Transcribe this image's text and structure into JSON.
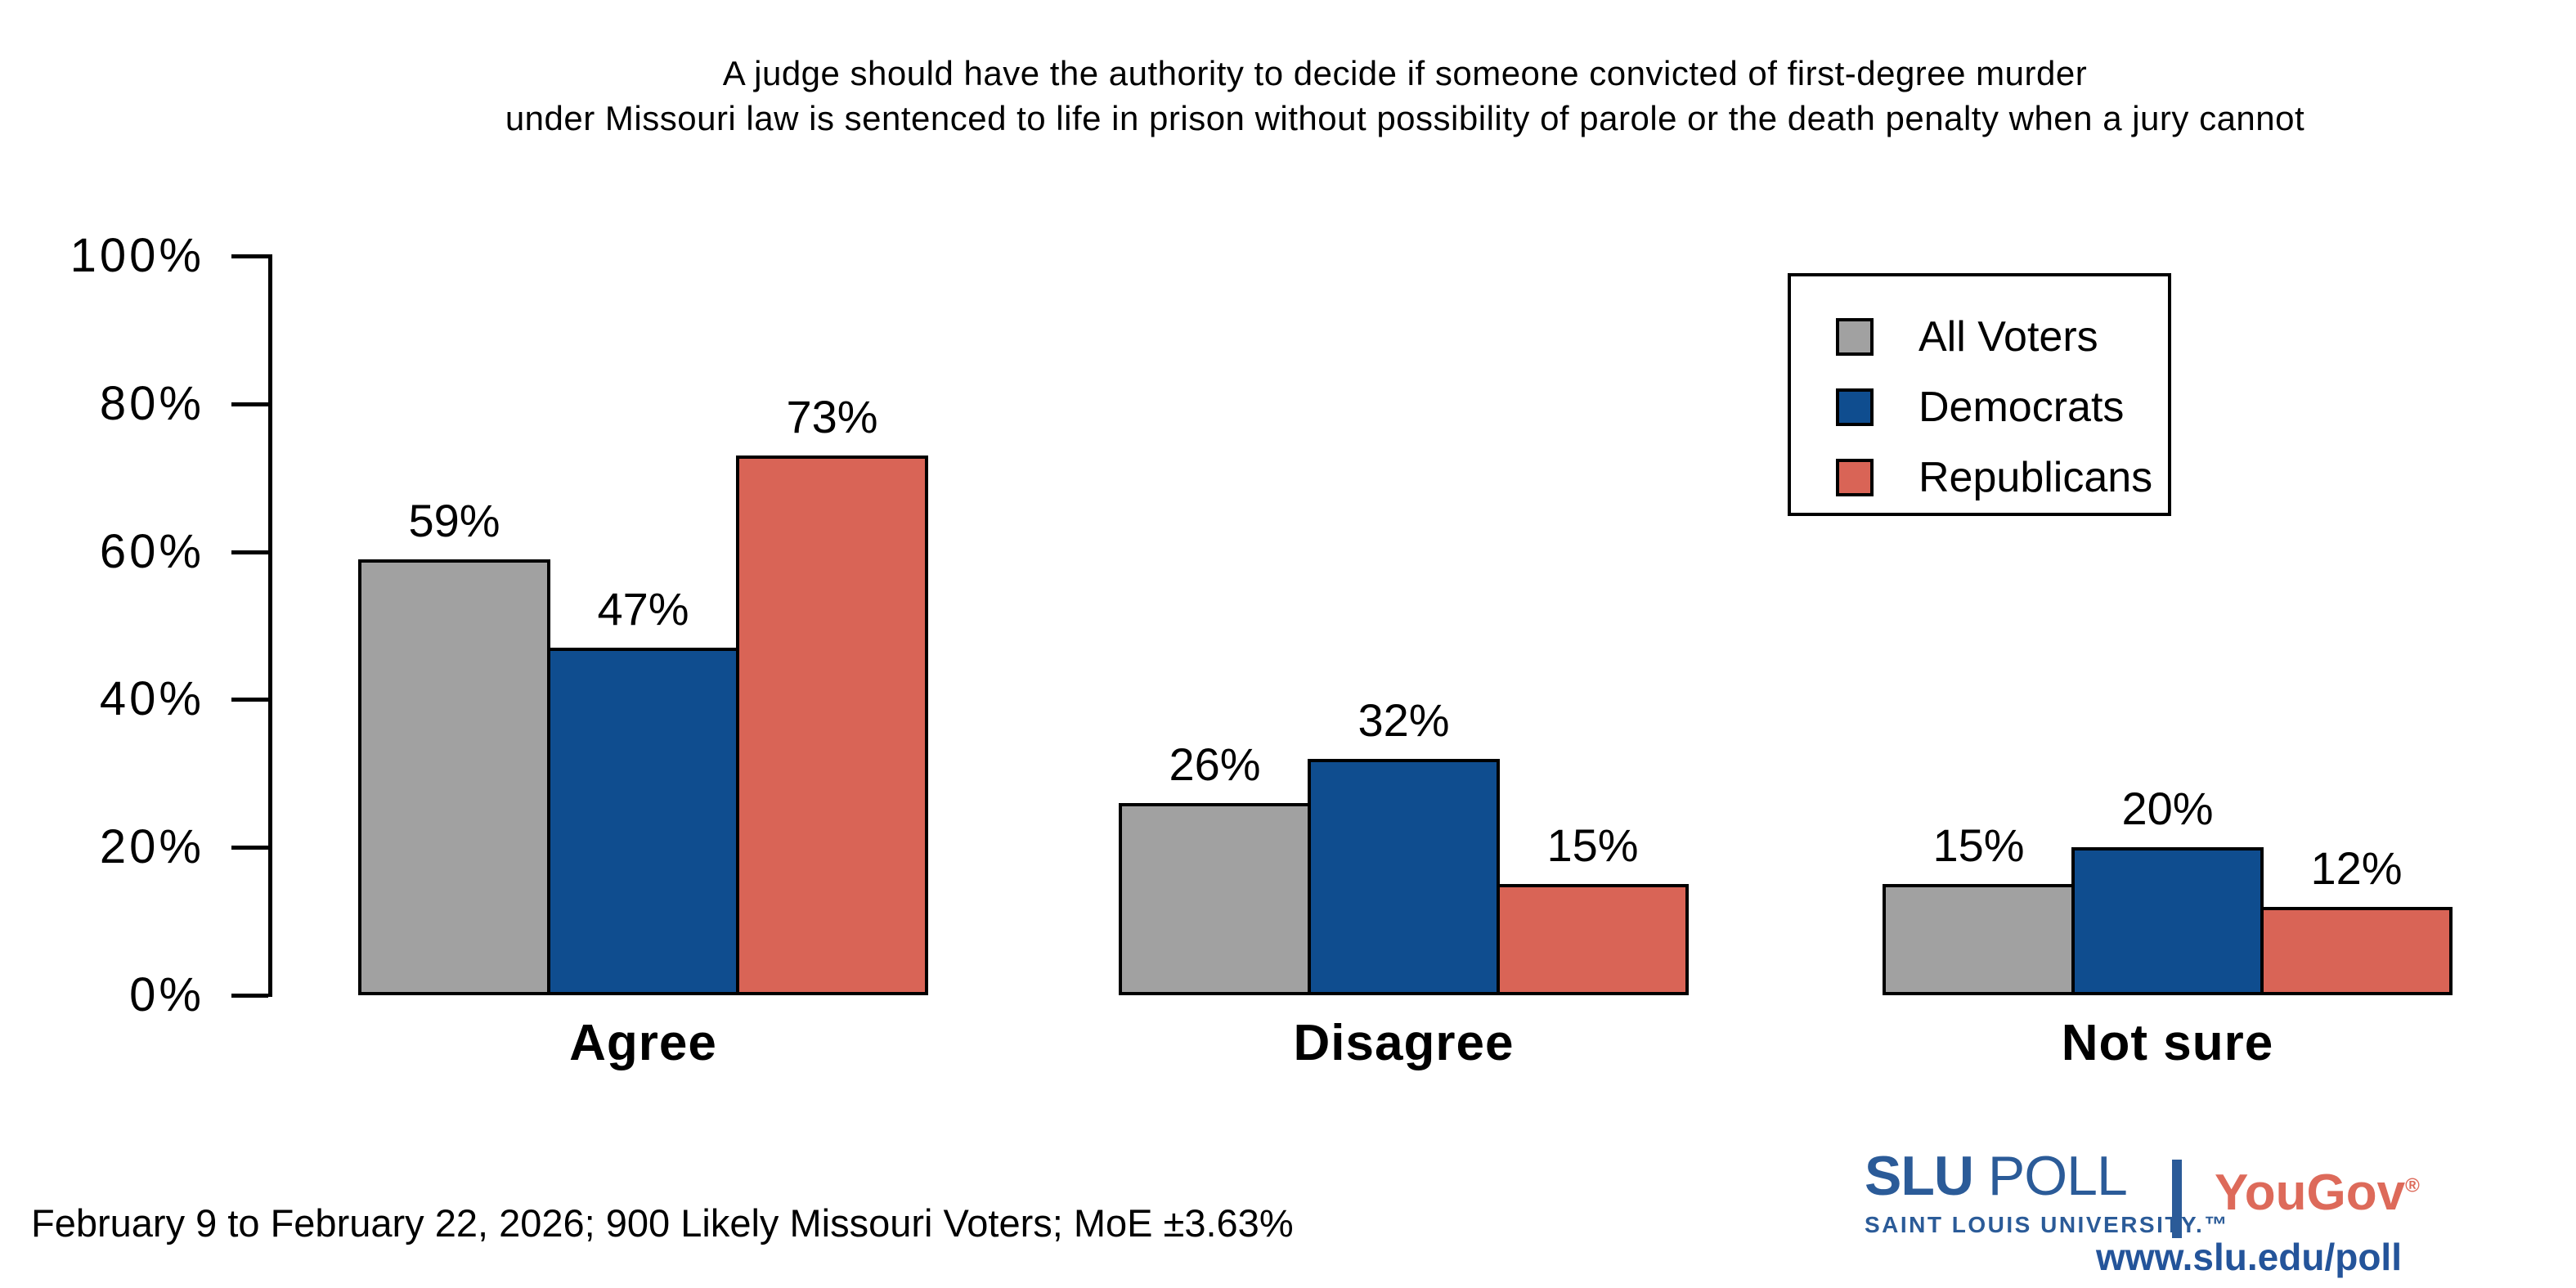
{
  "title": {
    "line1": "A judge should have the authority to decide if someone convicted of first-degree murder",
    "line2": "under Missouri law is sentenced to life in prison without possibility of parole or the death penalty when a jury cannot"
  },
  "chart_data": {
    "type": "bar",
    "categories": [
      "Agree",
      "Disagree",
      "Not sure"
    ],
    "series": [
      {
        "name": "All Voters",
        "color": "#a1a1a1",
        "values": [
          59,
          26,
          15
        ]
      },
      {
        "name": "Democrats",
        "color": "#0f4d8f",
        "values": [
          47,
          32,
          20
        ]
      },
      {
        "name": "Republicans",
        "color": "#d96456",
        "values": [
          73,
          15,
          12
        ]
      }
    ],
    "value_labels": [
      [
        "59%",
        "26%",
        "15%"
      ],
      [
        "47%",
        "32%",
        "20%"
      ],
      [
        "73%",
        "15%",
        "12%"
      ]
    ],
    "yticks": [
      {
        "label": "0%",
        "value": 0
      },
      {
        "label": "20%",
        "value": 20
      },
      {
        "label": "40%",
        "value": 40
      },
      {
        "label": "60%",
        "value": 60
      },
      {
        "label": "80%",
        "value": 80
      },
      {
        "label": "100%",
        "value": 100
      }
    ],
    "ylim": [
      0,
      100
    ],
    "grid": false,
    "legend_position": "top-right",
    "bar_outline_color": "#000000"
  },
  "legend": {
    "items": [
      {
        "label": "All Voters",
        "color": "#a1a1a1"
      },
      {
        "label": "Democrats",
        "color": "#0f4d8f"
      },
      {
        "label": "Republicans",
        "color": "#d96456"
      }
    ]
  },
  "footer": {
    "note": "February 9 to February 22, 2026; 900 Likely Missouri Voters; MoE ±3.63%"
  },
  "branding": {
    "slu_name": "SLU",
    "slu_poll": "POLL",
    "slu_tagline": "SAINT LOUIS UNIVERSITY.™",
    "yougov": "YouGov",
    "yougov_reg": "®",
    "url": "www.slu.edu/poll",
    "slu_blue": "#2b5b98",
    "yougov_red": "#dd6a5a",
    "url_blue": "#24549a"
  }
}
